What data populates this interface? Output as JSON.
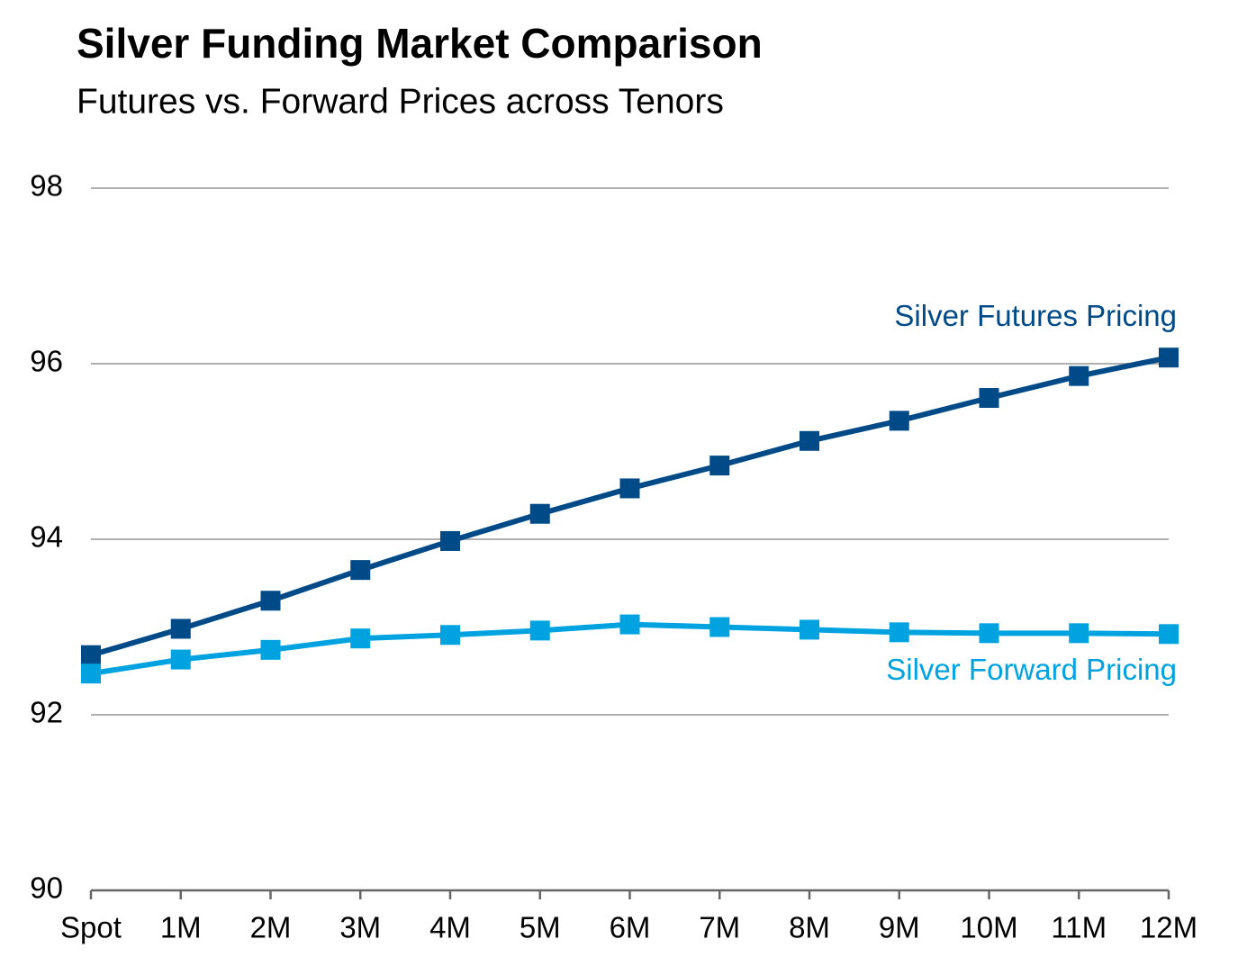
{
  "chart_data": {
    "type": "line",
    "title": "Silver Funding Market Comparison",
    "subtitle": "Futures vs. Forward Prices across Tenors",
    "categories": [
      "Spot",
      "1M",
      "2M",
      "3M",
      "4M",
      "5M",
      "6M",
      "7M",
      "8M",
      "9M",
      "10M",
      "11M",
      "12M"
    ],
    "series": [
      {
        "name": "Silver Futures Pricing",
        "color": "#004a87",
        "values": [
          92.68,
          92.98,
          93.3,
          93.65,
          93.98,
          94.29,
          94.58,
          94.84,
          95.12,
          95.35,
          95.61,
          95.86,
          96.07
        ]
      },
      {
        "name": "Silver Forward Pricing",
        "color": "#00a3e0",
        "values": [
          92.47,
          92.63,
          92.74,
          92.87,
          92.91,
          92.96,
          93.03,
          93.0,
          92.97,
          92.94,
          92.93,
          92.93,
          92.92
        ]
      }
    ],
    "ylim": [
      90,
      98
    ],
    "yticks": [
      90,
      92,
      94,
      96,
      98
    ],
    "grid": true
  }
}
